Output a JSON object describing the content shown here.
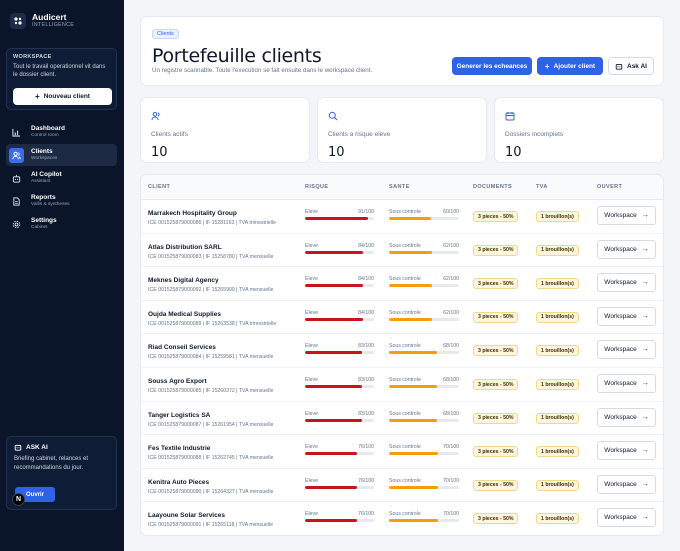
{
  "app": {
    "name": "Audicert",
    "subtitle": "INTELLIGENCE"
  },
  "workspace": {
    "title": "WORKSPACE",
    "text": "Tout le travail operationnel vit dans le dossier client.",
    "new_client_label": "Nouveau client"
  },
  "nav": [
    {
      "label": "Dashboard",
      "sub": "Control room",
      "icon": "chart-icon",
      "active": false
    },
    {
      "label": "Clients",
      "sub": "Workspaces",
      "icon": "users-icon",
      "active": true
    },
    {
      "label": "AI Copilot",
      "sub": "Assistant",
      "icon": "bot-icon",
      "active": false
    },
    {
      "label": "Reports",
      "sub": "Vallis & syntheses",
      "icon": "file-icon",
      "active": false
    },
    {
      "label": "Settings",
      "sub": "Cabinet",
      "icon": "gear-icon",
      "active": false
    }
  ],
  "ask": {
    "title": "ASK AI",
    "text": "Briefing cabinet, relances et recommandations du jour.",
    "button": "Ouvrir"
  },
  "header": {
    "crumb": "Clients",
    "title": "Portefeuille clients",
    "subtitle": "Un registre scannable. Toute l'execution se fait ensuite dans le workspace client.",
    "btn_schedule": "Generer les echeances",
    "btn_add": "Ajouter client",
    "btn_ask": "Ask AI"
  },
  "stats": [
    {
      "label": "Clients actifs",
      "value": "10",
      "icon": "users-icon"
    },
    {
      "label": "Clients a risque eleve",
      "value": "10",
      "icon": "search-icon"
    },
    {
      "label": "Dossiers incomplets",
      "value": "10",
      "icon": "calendar-icon"
    }
  ],
  "table": {
    "columns": [
      "CLIENT",
      "RISQUE",
      "SANTE",
      "DOCUMENTS",
      "TVA",
      "OUVERT"
    ],
    "risk_label": "Eleve",
    "health_label": "Sous controle",
    "action_label": "Workspace",
    "risk_color": "#c8141b",
    "health_color": "#f59e0b",
    "rows": [
      {
        "name": "Marrakech Hospitality Group",
        "meta": "ICE 001525879000086 | IF 15281163 | TVA trimestrielle",
        "risk": "91/100",
        "risk_pct": 91,
        "health": "60/100",
        "health_pct": 60,
        "docs": "3 pieces - 50%",
        "tva": "1 brouillon(s)"
      },
      {
        "name": "Atlas Distribution SARL",
        "meta": "ICE 001525879000083 | IF 15258780 | TVA mensuelle",
        "risk": "84/100",
        "risk_pct": 84,
        "health": "62/100",
        "health_pct": 62,
        "docs": "3 pieces - 50%",
        "tva": "1 brouillon(s)"
      },
      {
        "name": "Meknes Digital Agency",
        "meta": "ICE 001525879000092 | IF 15265909 | TVA mensuelle",
        "risk": "84/100",
        "risk_pct": 84,
        "health": "62/100",
        "health_pct": 62,
        "docs": "3 pieces - 50%",
        "tva": "1 brouillon(s)"
      },
      {
        "name": "Oujda Medical Supplies",
        "meta": "ICE 001525879000089 | IF 15263538 | TVA trimestrielle",
        "risk": "84/100",
        "risk_pct": 84,
        "health": "62/100",
        "health_pct": 62,
        "docs": "3 pieces - 50%",
        "tva": "1 brouillon(s)"
      },
      {
        "name": "Riad Conseil Services",
        "meta": "ICE 001525879000084 | IF 15259581 | TVA mensuelle",
        "risk": "83/100",
        "risk_pct": 83,
        "health": "68/100",
        "health_pct": 68,
        "docs": "3 pieces - 50%",
        "tva": "1 brouillon(s)"
      },
      {
        "name": "Souss Agro Export",
        "meta": "ICE 001525879000085 | IF 15260372 | TVA mensuelle",
        "risk": "83/100",
        "risk_pct": 83,
        "health": "68/100",
        "health_pct": 68,
        "docs": "3 pieces - 50%",
        "tva": "1 brouillon(s)"
      },
      {
        "name": "Tanger Logistics SA",
        "meta": "ICE 001525879000087 | IF 15261954 | TVA mensuelle",
        "risk": "83/100",
        "risk_pct": 83,
        "health": "68/100",
        "health_pct": 68,
        "docs": "3 pieces - 50%",
        "tva": "1 brouillon(s)"
      },
      {
        "name": "Fes Textile Industrie",
        "meta": "ICE 001525879000088 | IF 15262745 | TVA mensuelle",
        "risk": "76/100",
        "risk_pct": 76,
        "health": "70/100",
        "health_pct": 70,
        "docs": "3 pieces - 50%",
        "tva": "1 brouillon(s)"
      },
      {
        "name": "Kenitra Auto Pieces",
        "meta": "ICE 001525879000090 | IF 15264327 | TVA mensuelle",
        "risk": "76/100",
        "risk_pct": 76,
        "health": "70/100",
        "health_pct": 70,
        "docs": "3 pieces - 50%",
        "tva": "1 brouillon(s)"
      },
      {
        "name": "Laayoune Solar Services",
        "meta": "ICE 001525879000091 | IF 15265118 | TVA mensuelle",
        "risk": "76/100",
        "risk_pct": 76,
        "health": "70/100",
        "health_pct": 70,
        "docs": "3 pieces - 50%",
        "tva": "1 brouillon(s)"
      }
    ]
  }
}
